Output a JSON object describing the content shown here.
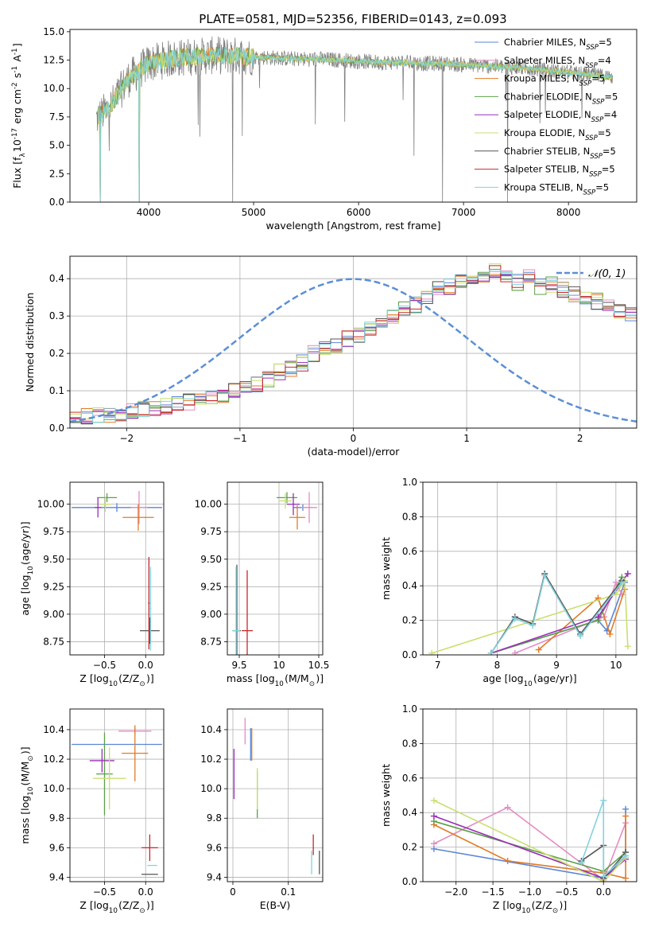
{
  "colors": {
    "series": [
      "#5b86d6",
      "#e58cc4",
      "#e07b28",
      "#5aa04a",
      "#9b2db5",
      "#c8e06e",
      "#555555",
      "#c9252b",
      "#82d3dc"
    ],
    "gaussian": "#5b8fd6",
    "grid": "#b0b0b0"
  },
  "chart_data": [
    {
      "id": "spectrum",
      "type": "line",
      "title": "PLATE=0581, MJD=52356, FIBERID=0143, z=0.093",
      "xlabel": "wavelength [Angstrom, rest frame]",
      "ylabel": "Flux [f$_\\lambda$10$^{-17}$ erg cm$^{-2}$ s$^{-1}$ A$^{-1}$]",
      "xlim": [
        3250,
        8650
      ],
      "ylim": [
        0,
        15.2
      ],
      "xticks": [
        4000,
        5000,
        6000,
        7000,
        8000
      ],
      "yticks": [
        0.0,
        2.5,
        5.0,
        7.5,
        10.0,
        12.5,
        15.0
      ],
      "grid": false,
      "legend_position": "upper-right",
      "legend": [
        {
          "label": "Chabrier MILES, N",
          "sub": "SSP",
          "tail": "=5"
        },
        {
          "label": "Salpeter MILES, N",
          "sub": "SSP",
          "tail": "=4"
        },
        {
          "label": "Kroupa MILES, N",
          "sub": "SSP",
          "tail": "=5"
        },
        {
          "label": "Chabrier ELODIE, N",
          "sub": "SSP",
          "tail": "=5"
        },
        {
          "label": "Salpeter ELODIE, N",
          "sub": "SSP",
          "tail": "=4"
        },
        {
          "label": "Kroupa ELODIE, N",
          "sub": "SSP",
          "tail": "=5"
        },
        {
          "label": "Chabrier STELIB, N",
          "sub": "SSP",
          "tail": "=5"
        },
        {
          "label": "Salpeter STELIB, N",
          "sub": "SSP",
          "tail": "=5"
        },
        {
          "label": "Kroupa STELIB, N",
          "sub": "SSP",
          "tail": "=5"
        }
      ],
      "observed_continuum": {
        "x": [
          3500,
          3560,
          3650,
          3800,
          4000,
          4200,
          4400,
          4600,
          4800,
          5000,
          5200,
          5400,
          5600,
          5800,
          6000,
          6200,
          6400,
          6600,
          6800,
          7000,
          7200,
          7400,
          7600,
          7800,
          8000,
          8200,
          8400
        ],
        "y": [
          7.3,
          7.8,
          8.6,
          10.8,
          12.2,
          12.6,
          12.8,
          12.9,
          12.9,
          12.8,
          12.7,
          12.6,
          12.6,
          12.5,
          12.4,
          12.3,
          12.3,
          12.2,
          12.2,
          12.1,
          12.0,
          11.9,
          11.8,
          11.6,
          11.4,
          11.2,
          11.0
        ]
      },
      "absorption_dips": [
        {
          "x": 3540,
          "y": 0
        },
        {
          "x": 3910,
          "y": 0
        },
        {
          "x": 4800,
          "y": 0
        },
        {
          "x": 6800,
          "y": 0
        },
        {
          "x": 7420,
          "y": 0
        }
      ]
    },
    {
      "id": "residuals",
      "type": "histogram",
      "xlabel": "(data-model)/error",
      "ylabel": "Normed distribution",
      "xlim": [
        -2.5,
        2.5
      ],
      "ylim": [
        0,
        0.46
      ],
      "xticks": [
        -2,
        -1,
        0,
        1,
        2
      ],
      "yticks": [
        0.0,
        0.1,
        0.2,
        0.3,
        0.4
      ],
      "grid": true,
      "legend_position": "upper-right",
      "legend": [
        {
          "label": "𝒩(0, 1)"
        }
      ],
      "bin_width": 0.1,
      "bins_start": -2.5,
      "mean_bar_heights": [
        0.03,
        0.03,
        0.035,
        0.035,
        0.04,
        0.045,
        0.05,
        0.05,
        0.06,
        0.065,
        0.07,
        0.08,
        0.085,
        0.09,
        0.1,
        0.11,
        0.115,
        0.13,
        0.15,
        0.16,
        0.175,
        0.2,
        0.21,
        0.22,
        0.24,
        0.25,
        0.27,
        0.29,
        0.3,
        0.32,
        0.33,
        0.35,
        0.37,
        0.38,
        0.39,
        0.4,
        0.4,
        0.42,
        0.41,
        0.39,
        0.405,
        0.38,
        0.385,
        0.37,
        0.36,
        0.35,
        0.34,
        0.33,
        0.31,
        0.3,
        0.3,
        0.28,
        0.26,
        0.25,
        0.23,
        0.22,
        0.2,
        0.18,
        0.16,
        0.15,
        0.13,
        0.12,
        0.1,
        0.09,
        0.08,
        0.07,
        0.06,
        0.05,
        0.045,
        0.04,
        0.035,
        0.03,
        0.03,
        0.03,
        0.025,
        0.025
      ],
      "gaussian": {
        "mean": 0,
        "sigma": 1
      }
    },
    {
      "id": "age-vs-Z",
      "type": "scatter",
      "xlabel": "Z [log$_{10}$(Z/Z$_\\odot$)]",
      "ylabel": "age  [log$_{10}$(age/yr)]",
      "xlim": [
        -0.92,
        0.22
      ],
      "ylim": [
        8.63,
        10.2
      ],
      "xticks": [
        -0.5,
        0.0
      ],
      "xticklabels": [
        "−0.5",
        "0.0"
      ],
      "yticks": [
        8.75,
        9.0,
        9.25,
        9.5,
        9.75,
        10.0
      ],
      "grid": true,
      "points": [
        {
          "x": -0.35,
          "y": 9.97,
          "xerr": 0.55,
          "yerr": 0.04,
          "c": 0
        },
        {
          "x": -0.08,
          "y": 9.97,
          "xerr": 0.1,
          "yerr": 0.15,
          "c": 1
        },
        {
          "x": -0.09,
          "y": 9.88,
          "xerr": 0.19,
          "yerr": 0.12,
          "c": 2
        },
        {
          "x": -0.47,
          "y": 10.06,
          "xerr": 0.12,
          "yerr": 0.04,
          "c": 3
        },
        {
          "x": -0.58,
          "y": 9.97,
          "xerr": 0.04,
          "yerr": 0.09,
          "c": 4
        },
        {
          "x": -0.49,
          "y": 10.0,
          "xerr": 0.07,
          "yerr": 0.07,
          "c": 5
        },
        {
          "x": 0.05,
          "y": 8.85,
          "xerr": 0.12,
          "yerr": 0.12,
          "c": 6
        },
        {
          "x": 0.04,
          "y": 9.1,
          "xerr": 0.01,
          "yerr": 0.42,
          "c": 7
        },
        {
          "x": 0.06,
          "y": 9.05,
          "xerr": 0.01,
          "yerr": 0.38,
          "c": 8
        }
      ]
    },
    {
      "id": "age-vs-mass",
      "type": "scatter",
      "xlabel": "mass [log$_{10}$(M/M$_\\odot$)]",
      "ylabel": "",
      "xlim": [
        9.35,
        10.55
      ],
      "ylim": [
        8.63,
        10.2
      ],
      "xticks": [
        9.5,
        10.0,
        10.5
      ],
      "yticks": [
        8.75,
        9.0,
        9.25,
        9.5,
        9.75,
        10.0
      ],
      "grid": true,
      "points": [
        {
          "x": 10.3,
          "y": 9.97,
          "xerr": 0.12,
          "yerr": 0.03,
          "c": 0
        },
        {
          "x": 10.38,
          "y": 9.97,
          "xerr": 0.1,
          "yerr": 0.14,
          "c": 1
        },
        {
          "x": 10.23,
          "y": 9.88,
          "xerr": 0.1,
          "yerr": 0.11,
          "c": 2
        },
        {
          "x": 10.1,
          "y": 10.06,
          "xerr": 0.13,
          "yerr": 0.05,
          "c": 3
        },
        {
          "x": 10.18,
          "y": 10.0,
          "xerr": 0.08,
          "yerr": 0.1,
          "c": 4
        },
        {
          "x": 10.08,
          "y": 10.03,
          "xerr": 0.08,
          "yerr": 0.07,
          "c": 5
        },
        {
          "x": 9.47,
          "y": 8.85,
          "xerr": 0.05,
          "yerr": 0.6,
          "c": 6
        },
        {
          "x": 9.6,
          "y": 8.85,
          "xerr": 0.07,
          "yerr": 0.55,
          "c": 7
        },
        {
          "x": 9.46,
          "y": 8.85,
          "xerr": 0.05,
          "yerr": 0.58,
          "c": 8
        }
      ]
    },
    {
      "id": "massweight-vs-age",
      "type": "line",
      "xlabel": "age  [log$_{10}$(age/yr)]",
      "ylabel": "mass weight",
      "xlim": [
        6.75,
        10.35
      ],
      "ylim": [
        0,
        1.0
      ],
      "xticks": [
        7,
        8,
        9,
        10
      ],
      "yticks": [
        0.0,
        0.2,
        0.4,
        0.6,
        0.8,
        1.0
      ],
      "grid": true,
      "series": [
        {
          "c": 0,
          "x": [
            7.9,
            9.7,
            9.85,
            10.15
          ],
          "y": [
            0.01,
            0.2,
            0.14,
            0.42
          ]
        },
        {
          "c": 1,
          "x": [
            8.3,
            9.8,
            10.0,
            10.1
          ],
          "y": [
            0.01,
            0.22,
            0.42,
            0.35
          ]
        },
        {
          "c": 2,
          "x": [
            8.7,
            9.7,
            9.9,
            10.15
          ],
          "y": [
            0.03,
            0.33,
            0.12,
            0.38
          ]
        },
        {
          "c": 3,
          "x": [
            7.9,
            9.7,
            10.1
          ],
          "y": [
            0.01,
            0.2,
            0.45
          ]
        },
        {
          "c": 4,
          "x": [
            7.9,
            9.7,
            10.2
          ],
          "y": [
            0.01,
            0.22,
            0.47
          ]
        },
        {
          "c": 5,
          "x": [
            6.9,
            10.0,
            10.15,
            10.2
          ],
          "y": [
            0.01,
            0.35,
            0.43,
            0.05
          ]
        },
        {
          "c": 6,
          "x": [
            7.9,
            8.3,
            8.6,
            8.8,
            9.4,
            10.1
          ],
          "y": [
            0.01,
            0.22,
            0.18,
            0.47,
            0.12,
            0.43
          ]
        },
        {
          "c": 8,
          "x": [
            7.9,
            8.3,
            8.6,
            8.8,
            9.4,
            10.1
          ],
          "y": [
            0.01,
            0.21,
            0.17,
            0.46,
            0.11,
            0.42
          ]
        }
      ]
    },
    {
      "id": "mass-vs-Z",
      "type": "scatter",
      "xlabel": "Z [log$_{10}$(Z/Z$_\\odot$)]",
      "ylabel": "mass [log$_{10}$(M/M$_\\odot$)]",
      "xlim": [
        -0.92,
        0.22
      ],
      "ylim": [
        9.37,
        10.54
      ],
      "xticks": [
        -0.5,
        0.0
      ],
      "xticklabels": [
        "−0.5",
        "0.0"
      ],
      "yticks": [
        9.4,
        9.6,
        9.8,
        10.0,
        10.2,
        10.4
      ],
      "grid": true,
      "points": [
        {
          "x": -0.35,
          "y": 10.3,
          "xerr": 0.55,
          "yerr": 0.0,
          "c": 0
        },
        {
          "x": -0.13,
          "y": 10.39,
          "xerr": 0.2,
          "yerr": 0.02,
          "c": 1
        },
        {
          "x": -0.13,
          "y": 10.24,
          "xerr": 0.16,
          "yerr": 0.19,
          "c": 2
        },
        {
          "x": -0.5,
          "y": 10.1,
          "xerr": 0.1,
          "yerr": 0.28,
          "c": 3
        },
        {
          "x": -0.53,
          "y": 10.19,
          "xerr": 0.15,
          "yerr": 0.08,
          "c": 4
        },
        {
          "x": -0.44,
          "y": 10.07,
          "xerr": 0.2,
          "yerr": 0.21,
          "c": 5
        },
        {
          "x": 0.05,
          "y": 9.42,
          "xerr": 0.1,
          "yerr": 0.0,
          "c": 6
        },
        {
          "x": 0.05,
          "y": 9.6,
          "xerr": 0.1,
          "yerr": 0.09,
          "c": 7
        },
        {
          "x": 0.08,
          "y": 9.48,
          "xerr": 0.06,
          "yerr": 0.0,
          "c": 8
        }
      ]
    },
    {
      "id": "mass-vs-EBV",
      "type": "scatter",
      "xlabel": "E(B-V)",
      "ylabel": "",
      "xlim": [
        -0.01,
        0.162
      ],
      "ylim": [
        9.37,
        10.54
      ],
      "xticks": [
        0.0,
        0.1
      ],
      "yticks": [
        9.4,
        9.6,
        9.8,
        10.0,
        10.2,
        10.4
      ],
      "grid": true,
      "points": [
        {
          "x": 0.032,
          "y": 10.3,
          "xerr": 0.0,
          "yerr": 0.11,
          "c": 0
        },
        {
          "x": 0.022,
          "y": 10.39,
          "xerr": 0.0,
          "yerr": 0.09,
          "c": 1
        },
        {
          "x": 0.034,
          "y": 10.3,
          "xerr": 0.0,
          "yerr": 0.11,
          "c": 2
        },
        {
          "x": 0.044,
          "y": 9.96,
          "xerr": 0.0,
          "yerr": 0.16,
          "c": 3
        },
        {
          "x": 0.002,
          "y": 10.1,
          "xerr": 0.0,
          "yerr": 0.17,
          "c": 4
        },
        {
          "x": 0.044,
          "y": 10.0,
          "xerr": 0.0,
          "yerr": 0.14,
          "c": 5
        },
        {
          "x": 0.156,
          "y": 9.5,
          "xerr": 0.0,
          "yerr": 0.08,
          "c": 6
        },
        {
          "x": 0.145,
          "y": 9.62,
          "xerr": 0.0,
          "yerr": 0.07,
          "c": 7
        },
        {
          "x": 0.142,
          "y": 9.5,
          "xerr": 0.0,
          "yerr": 0.08,
          "c": 8
        }
      ]
    },
    {
      "id": "massweight-vs-Z",
      "type": "line",
      "xlabel": "Z [log$_{10}$(Z/Z$_\\odot$)]",
      "ylabel": "mass weight",
      "xlim": [
        -2.45,
        0.45
      ],
      "ylim": [
        0,
        1.0
      ],
      "xticks": [
        -2.0,
        -1.5,
        -1.0,
        -0.5,
        0.0
      ],
      "xticklabels": [
        "−2.0",
        "−1.5",
        "−1.0",
        "−0.5",
        "0.0"
      ],
      "yticks": [
        0.0,
        0.2,
        0.4,
        0.6,
        0.8,
        1.0
      ],
      "grid": true,
      "series": [
        {
          "c": 0,
          "x": [
            -2.3,
            0.0,
            0.3,
            0.3
          ],
          "y": [
            0.19,
            0.02,
            0.15,
            0.42
          ]
        },
        {
          "c": 1,
          "x": [
            -2.3,
            -1.3,
            0.0,
            0.3
          ],
          "y": [
            0.22,
            0.43,
            0.01,
            0.34
          ]
        },
        {
          "c": 2,
          "x": [
            -2.3,
            -1.3,
            0.0,
            0.3,
            0.3
          ],
          "y": [
            0.33,
            0.12,
            0.05,
            0.02,
            0.38
          ]
        },
        {
          "c": 3,
          "x": [
            -2.3,
            0.0,
            0.3
          ],
          "y": [
            0.35,
            0.06,
            0.17
          ]
        },
        {
          "c": 4,
          "x": [
            -2.3,
            0.0,
            0.3
          ],
          "y": [
            0.38,
            0.02,
            0.13
          ]
        },
        {
          "c": 5,
          "x": [
            -2.3,
            0.0,
            0.3
          ],
          "y": [
            0.47,
            0.0,
            0.14
          ]
        },
        {
          "c": 6,
          "x": [
            -0.3,
            0.0,
            0.0,
            0.3
          ],
          "y": [
            0.12,
            0.21,
            0.02,
            0.17
          ]
        },
        {
          "c": 8,
          "x": [
            -0.3,
            0.0,
            0.0,
            0.3
          ],
          "y": [
            0.11,
            0.47,
            0.03,
            0.15
          ]
        }
      ]
    }
  ]
}
